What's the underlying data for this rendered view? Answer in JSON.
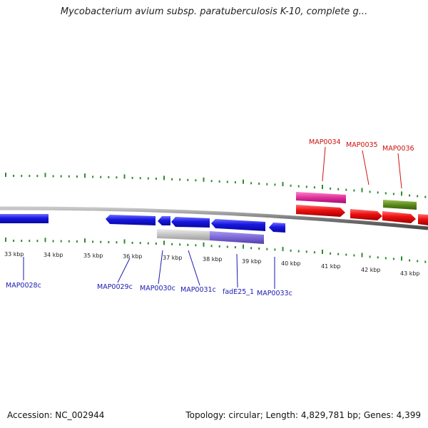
{
  "title": "Mycobacterium avium subsp. paratuberculosis K-10, complete g...",
  "footer": {
    "accession": "Accession: NC_002944",
    "summary": "Topology: circular; Length: 4,829,781 bp; Genes: 4,399"
  },
  "kbp_labels": [
    "33 kbp",
    "34 kbp",
    "35 kbp",
    "36 kbp",
    "37 kbp",
    "38 kbp",
    "39 kbp",
    "40 kbp",
    "41 kbp",
    "42 kbp",
    "43 kbp"
  ],
  "gene_labels_plus": [
    "MAP0034",
    "MAP0035",
    "MAP0036"
  ],
  "gene_labels_minus": [
    "MAP0028c",
    "MAP0029c",
    "MAP0030c",
    "MAP0031c",
    "fadE25_1",
    "MAP0033c"
  ],
  "colors": {
    "backbone": "#8a8a8a",
    "tick": "#2e8b2e",
    "minus_gene": "#1818e0",
    "plus_gene": "#ee1111",
    "pink_feature": "#e0309a",
    "olive_feature": "#5c8c1a",
    "grey_feature": "#c4c4c4",
    "purple_feature": "#7b68d6",
    "minus_label": "#1a1ab0",
    "plus_label": "#d01010"
  }
}
